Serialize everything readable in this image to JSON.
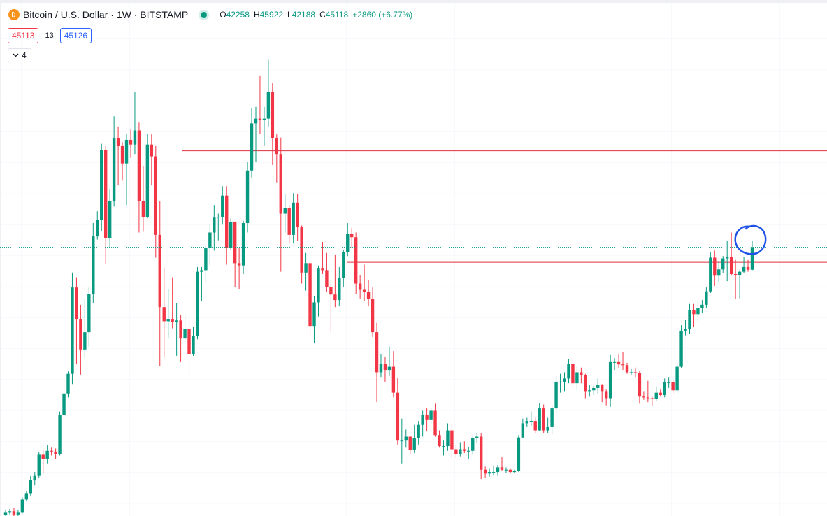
{
  "chart_data": {
    "type": "candlestick",
    "title": "Bitcoin / U.S. Dollar · 1W · BITSTAMP",
    "ohlc_labels": [
      "O",
      "H",
      "L",
      "C"
    ],
    "change": "+2860 (+6.77%)",
    "bid": 45113,
    "spread": 13,
    "ask": 45126,
    "indicators": 4,
    "up_color": "#089981",
    "down_color": "#f23645",
    "ylim": [
      10900,
      76600
    ],
    "hlines": [
      57400,
      43200
    ],
    "hline_color": "#e0313e",
    "open": [
      11000,
      11400,
      11500,
      11100,
      11400,
      13000,
      13800,
      15500,
      16000,
      18700,
      18200,
      19200,
      19100,
      18800,
      23800,
      26500,
      29000,
      40000,
      36000,
      32100,
      34300,
      39200,
      46500,
      48600,
      57500,
      46300,
      51000,
      59000,
      58000,
      55800,
      58800,
      58200,
      60000,
      51000,
      49000,
      58200,
      56700,
      46700,
      37500,
      35700,
      36000,
      35600,
      35800,
      33500,
      34700,
      31500,
      33800,
      42000,
      42200,
      45000,
      47000,
      48900,
      49000,
      51700,
      45000,
      48300,
      43100,
      42800,
      48200,
      54900,
      60900,
      61500,
      61300,
      61500,
      64900,
      59000,
      57000,
      49400,
      50100,
      46700,
      50800,
      47700,
      41900,
      43100,
      35100,
      38100,
      42400,
      42200,
      40100,
      39100,
      38400,
      41200,
      44500,
      46800,
      46400,
      40500,
      39700,
      39400,
      38500,
      34300,
      29200,
      30300,
      29500,
      29900,
      26600,
      20500,
      20500,
      21000,
      19300,
      20800,
      22500,
      23800,
      23200,
      24300,
      21200,
      19800,
      19800,
      21800,
      19400,
      18800,
      19400,
      19200,
      19200,
      20800,
      21000,
      16800,
      16300,
      16500,
      16500,
      17100,
      16800,
      16800,
      16500,
      16600,
      20900,
      22700,
      23000,
      23000,
      21800,
      24600,
      21800,
      22300,
      24600,
      28000,
      28000,
      28400,
      30300,
      27800,
      29200,
      28800,
      26800,
      26900,
      27200,
      27600,
      26800,
      25900,
      30500,
      30500,
      30200,
      30100,
      29200,
      29200,
      29100,
      26100,
      26000,
      25900,
      25800,
      26600,
      26300,
      27900,
      27900,
      26900,
      29900,
      34500,
      34700,
      37100,
      36600,
      37400,
      37800,
      39500,
      43800,
      41500,
      42300,
      43700,
      43900,
      41700,
      41600,
      42000,
      42600,
      42258
    ],
    "high": [
      11700,
      11800,
      11900,
      11700,
      13300,
      14100,
      16000,
      16500,
      19000,
      19400,
      19900,
      19600,
      19500,
      24200,
      28400,
      29300,
      41900,
      41300,
      37800,
      38500,
      40000,
      48200,
      49700,
      58300,
      58000,
      52500,
      61800,
      60500,
      58500,
      59600,
      60100,
      64900,
      61000,
      55500,
      59500,
      59500,
      58000,
      51000,
      42500,
      39800,
      41300,
      38000,
      36500,
      36600,
      35900,
      35000,
      42600,
      42600,
      45300,
      48100,
      50500,
      49400,
      52900,
      52900,
      48800,
      48400,
      45000,
      48500,
      56000,
      62800,
      63000,
      67000,
      63000,
      69000,
      66000,
      59500,
      59100,
      51900,
      50500,
      52000,
      51900,
      47900,
      44400,
      43400,
      38900,
      42800,
      45800,
      44400,
      40900,
      44200,
      42600,
      44800,
      48200,
      47600,
      47000,
      41600,
      42900,
      40900,
      40000,
      35500,
      31500,
      31200,
      32400,
      31900,
      28500,
      23300,
      21900,
      21100,
      22500,
      23000,
      24300,
      24600,
      24700,
      25200,
      21800,
      20500,
      22700,
      22500,
      19900,
      20300,
      20400,
      19700,
      21000,
      21400,
      21500,
      17200,
      16900,
      17300,
      17400,
      18400,
      17100,
      16900,
      16800,
      21200,
      23300,
      23400,
      24200,
      23500,
      25300,
      25100,
      23400,
      25000,
      28800,
      29000,
      29200,
      30900,
      31000,
      30000,
      29800,
      29000,
      27600,
      27500,
      28400,
      27700,
      27000,
      31400,
      31000,
      31500,
      31800,
      30400,
      29600,
      29800,
      29400,
      26800,
      28100,
      26100,
      27400,
      27000,
      28400,
      28600,
      28300,
      30400,
      35200,
      35900,
      37900,
      37900,
      38400,
      38400,
      40000,
      44500,
      44700,
      43400,
      44000,
      45900,
      47000,
      43500,
      42200,
      43900,
      43500,
      45922
    ],
    "low": [
      10800,
      11100,
      10900,
      10800,
      11200,
      12800,
      13500,
      14800,
      15800,
      16300,
      17600,
      18600,
      18200,
      18600,
      23500,
      26000,
      27700,
      30300,
      28900,
      31000,
      32400,
      38000,
      46100,
      47200,
      43000,
      45000,
      50300,
      53000,
      53600,
      50500,
      56500,
      57000,
      47000,
      47100,
      48800,
      53000,
      43800,
      30000,
      31100,
      33500,
      34800,
      31300,
      30500,
      32800,
      28800,
      31300,
      33400,
      38300,
      40600,
      42800,
      44700,
      46000,
      48000,
      42900,
      44800,
      40000,
      39800,
      41700,
      47000,
      54000,
      56000,
      59500,
      58000,
      60500,
      55600,
      53300,
      42000,
      47000,
      45600,
      45600,
      45900,
      40500,
      39600,
      34000,
      32900,
      36300,
      41700,
      39400,
      34300,
      37500,
      37600,
      40100,
      44000,
      45000,
      39200,
      38600,
      38300,
      37600,
      33700,
      25400,
      28600,
      28000,
      28700,
      26000,
      20000,
      17600,
      19600,
      18800,
      18900,
      20000,
      21000,
      21700,
      22600,
      21000,
      19600,
      18600,
      19200,
      18300,
      18300,
      18500,
      18900,
      18200,
      18700,
      20200,
      15600,
      15800,
      15900,
      16100,
      16000,
      16600,
      16400,
      16300,
      16400,
      16500,
      20800,
      22300,
      22400,
      21400,
      21700,
      21400,
      21400,
      21300,
      24000,
      26600,
      26800,
      27800,
      27200,
      26900,
      27800,
      25900,
      26100,
      26300,
      26500,
      25400,
      25000,
      24800,
      29500,
      29800,
      29500,
      29000,
      28900,
      28600,
      25200,
      25700,
      25400,
      24900,
      25600,
      26100,
      26000,
      27200,
      26500,
      26600,
      29700,
      33900,
      34100,
      35000,
      35600,
      36800,
      37400,
      39300,
      40200,
      40600,
      41800,
      40800,
      41500,
      38500,
      38600,
      41800,
      42000,
      42188
    ],
    "close": [
      11400,
      11500,
      11100,
      11400,
      13000,
      13800,
      15500,
      16000,
      18700,
      18200,
      19200,
      19100,
      18800,
      23800,
      26500,
      29000,
      40000,
      36000,
      32100,
      34300,
      39200,
      46500,
      48600,
      57500,
      46300,
      51000,
      59000,
      58000,
      55800,
      58800,
      58200,
      60000,
      51000,
      49000,
      58200,
      56700,
      46700,
      37500,
      35700,
      36000,
      35600,
      35800,
      33500,
      34700,
      31500,
      33800,
      42000,
      42200,
      45000,
      47000,
      48900,
      49000,
      51700,
      45000,
      48300,
      43100,
      42800,
      48200,
      54900,
      60900,
      61500,
      61300,
      61500,
      64900,
      59000,
      57000,
      49400,
      50100,
      46700,
      50800,
      47700,
      41900,
      43100,
      35100,
      38100,
      42400,
      42200,
      40100,
      39100,
      38400,
      41200,
      44500,
      46800,
      46400,
      40500,
      39700,
      39400,
      38500,
      34300,
      29200,
      30300,
      29500,
      29900,
      26600,
      20500,
      20500,
      21000,
      19300,
      20800,
      22500,
      23800,
      23200,
      24300,
      21200,
      19800,
      19800,
      21800,
      19400,
      18800,
      19400,
      19200,
      19200,
      20800,
      21000,
      16800,
      16300,
      16500,
      16500,
      17100,
      16800,
      16800,
      16500,
      16600,
      20900,
      22700,
      23000,
      23000,
      21800,
      24600,
      21800,
      22300,
      24600,
      28000,
      28000,
      28400,
      30300,
      27800,
      29200,
      28800,
      26800,
      26900,
      27200,
      27600,
      26800,
      25900,
      30500,
      30500,
      30200,
      30100,
      29200,
      29200,
      29100,
      26100,
      26000,
      25900,
      25800,
      26600,
      26300,
      27900,
      27900,
      26900,
      29900,
      34500,
      34700,
      37100,
      36600,
      37400,
      37800,
      39500,
      43800,
      41500,
      42300,
      43700,
      43900,
      41700,
      41600,
      42000,
      42600,
      42258,
      45118
    ]
  }
}
